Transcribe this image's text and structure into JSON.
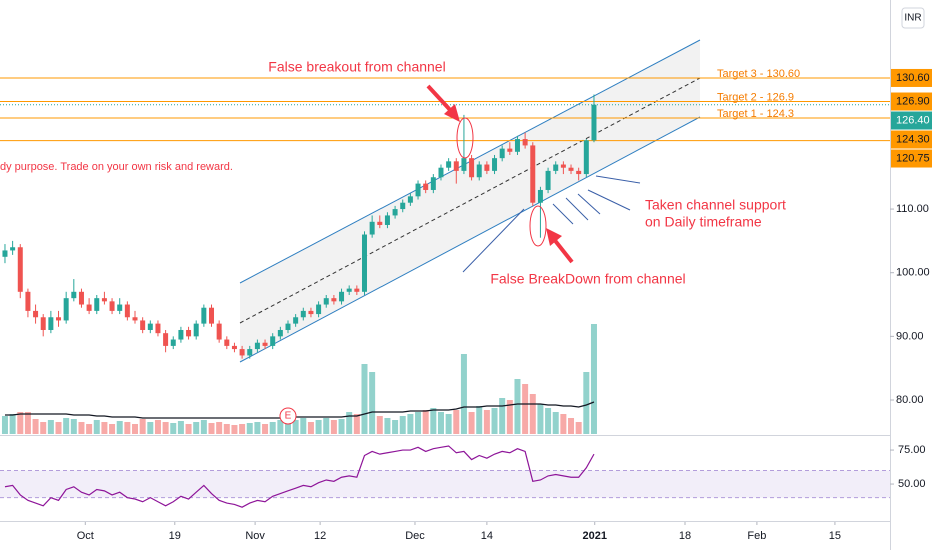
{
  "chart_data": {
    "type": "candlestick",
    "currency": "INR",
    "disclaimer": "dy purpose. Trade on your own risk and reward.",
    "annotations": {
      "breakout": "False breakout from channel",
      "breakdown": "False BreakDown from channel",
      "support_line1": "Taken channel support",
      "support_line2": "on Daily timeframe"
    },
    "earnings_marker": "E",
    "colors": {
      "up": "#26a69a",
      "down": "#ef5350"
    },
    "xlim": [
      -0.65,
      115.7
    ],
    "xticks": [
      {
        "value": 10.5,
        "label": "Oct"
      },
      {
        "value": 22.2,
        "label": "19"
      },
      {
        "value": 32.7,
        "label": "Nov"
      },
      {
        "value": 41.2,
        "label": "12"
      },
      {
        "value": 53.6,
        "label": "Dec"
      },
      {
        "value": 63,
        "label": "14"
      },
      {
        "value": 77.1,
        "label": "2021"
      },
      {
        "value": 88.9,
        "label": "18"
      },
      {
        "value": 98.3,
        "label": "Feb"
      },
      {
        "value": 108.5,
        "label": "15"
      }
    ],
    "ylim": [
      74.5,
      142.85
    ],
    "yticks": [
      {
        "value": 80,
        "label": "80.00"
      },
      {
        "value": 90,
        "label": "90.00"
      },
      {
        "value": 100,
        "label": "100.00"
      },
      {
        "value": 110,
        "label": "110.00"
      }
    ],
    "levels": [
      {
        "value": 130.6,
        "label": "130.60",
        "note": "Target 3 - 130.60"
      },
      {
        "value": 126.9,
        "label": "126.90",
        "note": "Target 2 - 126.9"
      },
      {
        "value": 124.3,
        "label": "124.30",
        "note": "Target 1 - 124.3"
      },
      {
        "value": 120.75,
        "label": "120.75"
      }
    ],
    "last_price": {
      "value": 126.4,
      "label": "126.40"
    },
    "ohlc": [
      [
        102.5,
        104.5,
        101.5,
        103.5
      ],
      [
        103.5,
        105,
        102.8,
        104
      ],
      [
        104,
        104.5,
        96,
        97
      ],
      [
        97,
        97.5,
        93,
        94
      ],
      [
        94,
        95,
        92,
        93
      ],
      [
        93,
        93.5,
        90,
        91
      ],
      [
        91,
        94,
        90.5,
        93
      ],
      [
        93,
        94,
        91.5,
        92.5
      ],
      [
        92.5,
        97,
        92,
        96
      ],
      [
        96,
        99,
        95.5,
        97
      ],
      [
        97,
        97.5,
        94.5,
        95
      ],
      [
        95,
        96,
        93.5,
        94
      ],
      [
        94,
        96.5,
        93.5,
        96
      ],
      [
        96,
        97,
        95,
        95.5
      ],
      [
        95.5,
        96,
        93.5,
        94
      ],
      [
        94,
        96,
        93.5,
        95
      ],
      [
        95,
        95.5,
        92.5,
        93
      ],
      [
        93,
        94,
        92,
        92.5
      ],
      [
        92.5,
        93,
        90.5,
        91
      ],
      [
        91,
        92.5,
        90.5,
        92
      ],
      [
        92,
        92.5,
        90,
        90.5
      ],
      [
        90.5,
        91,
        87.5,
        88.5
      ],
      [
        88.5,
        90,
        88,
        89.5
      ],
      [
        89.5,
        91.5,
        89,
        91
      ],
      [
        91,
        91.5,
        89.5,
        90
      ],
      [
        90,
        92.5,
        89.5,
        92
      ],
      [
        92,
        95,
        91.5,
        94.5
      ],
      [
        94.5,
        95,
        91.5,
        92
      ],
      [
        92,
        92.5,
        89,
        89.5
      ],
      [
        89.5,
        90,
        88,
        88.5
      ],
      [
        88.5,
        89,
        87.5,
        88
      ],
      [
        88,
        88.5,
        86.5,
        87
      ],
      [
        87,
        88.5,
        86.5,
        88
      ],
      [
        88,
        89.5,
        87.5,
        89
      ],
      [
        89,
        89.5,
        88,
        88.5
      ],
      [
        88.5,
        90.5,
        88,
        90
      ],
      [
        90,
        91.5,
        89.5,
        91
      ],
      [
        91,
        92.5,
        90.5,
        92
      ],
      [
        92,
        93.5,
        91.5,
        93
      ],
      [
        93,
        94.5,
        92.5,
        94
      ],
      [
        94,
        94.5,
        93,
        93.5
      ],
      [
        93.5,
        95.5,
        93,
        95
      ],
      [
        95,
        96.5,
        94.5,
        96
      ],
      [
        96,
        96.5,
        95,
        95.5
      ],
      [
        95.5,
        97.5,
        95,
        97
      ],
      [
        97,
        98,
        96.5,
        97.5
      ],
      [
        97.5,
        98,
        96.5,
        97
      ],
      [
        97,
        106.5,
        96.5,
        106
      ],
      [
        106,
        109,
        105.5,
        108
      ],
      [
        108,
        109,
        107,
        107.5
      ],
      [
        107.5,
        109.5,
        107,
        109
      ],
      [
        109,
        110.5,
        108.5,
        110
      ],
      [
        110,
        111.5,
        109.5,
        111
      ],
      [
        111,
        112.5,
        110.5,
        112
      ],
      [
        112,
        114.5,
        111.5,
        114
      ],
      [
        114,
        114.5,
        112.5,
        113
      ],
      [
        113,
        115.5,
        112.5,
        115
      ],
      [
        115,
        117,
        114.5,
        116.5
      ],
      [
        116.5,
        118,
        116,
        117.5
      ],
      [
        117.5,
        118,
        114,
        116
      ],
      [
        116,
        124.8,
        115.5,
        118
      ],
      [
        118,
        118.5,
        114.5,
        115
      ],
      [
        115,
        117.5,
        114.5,
        117
      ],
      [
        117,
        117.5,
        115.5,
        116
      ],
      [
        116,
        118.5,
        115.5,
        118
      ],
      [
        118,
        120,
        117.5,
        119.5
      ],
      [
        119.5,
        120.5,
        118.5,
        119
      ],
      [
        119,
        121.5,
        118.5,
        121
      ],
      [
        121,
        122,
        119.5,
        120
      ],
      [
        120,
        120.5,
        110.5,
        111
      ],
      [
        111,
        113.5,
        105.5,
        113
      ],
      [
        113,
        116.5,
        112.5,
        116
      ],
      [
        116,
        117.5,
        115.5,
        117
      ],
      [
        117,
        117.5,
        115.5,
        116.5
      ],
      [
        116.5,
        117,
        115.5,
        116
      ],
      [
        116,
        116.5,
        114.5,
        115.5
      ],
      [
        115.5,
        121,
        115,
        120.8
      ],
      [
        120.8,
        128,
        120.5,
        126.4
      ]
    ],
    "volume": {
      "values": [
        18,
        20,
        22,
        22,
        15,
        12,
        14,
        12,
        16,
        15,
        12,
        10,
        14,
        12,
        10,
        13,
        12,
        10,
        15,
        12,
        14,
        12,
        11,
        13,
        10,
        12,
        14,
        11,
        12,
        10,
        9,
        10,
        11,
        12,
        10,
        12,
        14,
        12,
        14,
        16,
        12,
        14,
        16,
        14,
        15,
        22,
        20,
        70,
        62,
        18,
        16,
        14,
        18,
        20,
        22,
        24,
        26,
        22,
        20,
        24,
        80,
        22,
        28,
        24,
        26,
        36,
        34,
        55,
        50,
        40,
        30,
        26,
        22,
        20,
        16,
        12,
        62,
        110
      ],
      "ma": [
        19,
        19,
        20,
        20,
        20,
        20,
        20,
        20,
        20,
        19,
        19,
        19,
        18,
        18,
        17,
        17,
        17,
        17,
        16,
        16,
        16,
        16,
        16,
        16,
        16,
        16,
        16,
        16,
        16,
        16,
        16,
        16,
        16,
        16,
        16,
        16,
        16,
        16,
        17,
        17,
        17,
        17,
        17,
        17,
        17,
        18,
        18,
        20,
        22,
        22,
        22,
        22,
        22,
        23,
        23,
        23,
        24,
        24,
        24,
        25,
        27,
        27,
        27,
        28,
        28,
        28,
        29,
        30,
        30,
        30,
        30,
        29,
        29,
        28,
        28,
        27,
        29,
        32
      ]
    },
    "rsi": {
      "values": [
        48,
        49,
        42,
        38,
        36,
        34,
        40,
        38,
        46,
        48,
        44,
        42,
        46,
        45,
        42,
        44,
        40,
        39,
        37,
        40,
        37,
        34,
        37,
        41,
        39,
        44,
        49,
        43,
        38,
        36,
        35,
        33,
        36,
        38,
        37,
        41,
        43,
        45,
        47,
        49,
        48,
        51,
        53,
        52,
        55,
        56,
        55,
        71,
        74,
        72,
        73,
        74,
        75,
        75,
        77,
        74,
        76,
        77,
        78,
        73,
        74,
        68,
        71,
        69,
        72,
        74,
        73,
        76,
        74,
        52,
        53,
        56,
        57,
        56,
        55,
        55,
        62,
        72
      ],
      "ylim": [
        22.1,
        84.6
      ],
      "yticks": [
        {
          "value": 75,
          "label": "75.00"
        },
        {
          "value": 50,
          "label": "50.00"
        }
      ],
      "band": [
        60,
        40
      ],
      "color": "#8e1599"
    }
  }
}
